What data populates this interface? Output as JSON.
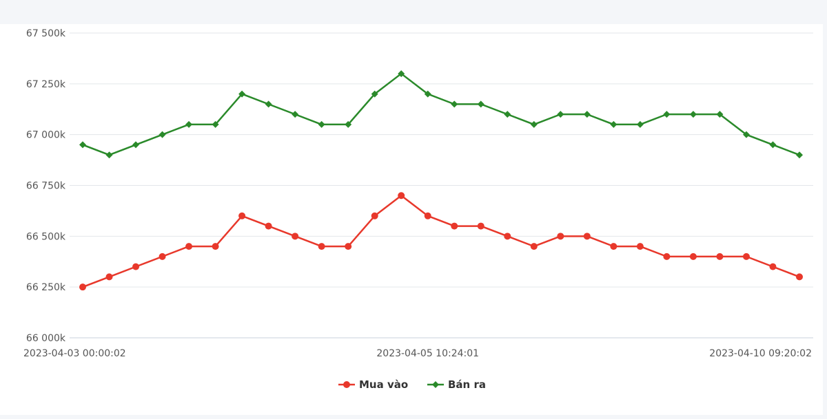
{
  "chart_data": {
    "type": "line",
    "x_tick_labels": [
      "2023-04-03 00:00:02",
      "2023-04-05 10:24:01",
      "2023-04-10 09:20:02"
    ],
    "x_tick_indices": [
      0,
      13,
      27
    ],
    "y_ticks": [
      66000,
      66250,
      66500,
      66750,
      67000,
      67250,
      67500
    ],
    "y_tick_labels": [
      "66 000k",
      "66 250k",
      "66 500k",
      "66 750k",
      "67 000k",
      "67 250k",
      "67 500k"
    ],
    "ylim": [
      66000,
      67500
    ],
    "grid": "horizontal",
    "legend_position": "bottom-center",
    "series": [
      {
        "name": "Mua vào",
        "color": "#e8382b",
        "marker": "circle",
        "values": [
          66250,
          66300,
          66350,
          66400,
          66450,
          66450,
          66600,
          66550,
          66500,
          66450,
          66450,
          66600,
          66700,
          66600,
          66550,
          66550,
          66500,
          66450,
          66500,
          66500,
          66450,
          66450,
          66400,
          66400,
          66400,
          66400,
          66350,
          66300
        ]
      },
      {
        "name": "Bán ra",
        "color": "#2a8a2a",
        "marker": "diamond",
        "values": [
          66950,
          66900,
          66950,
          67000,
          67050,
          67050,
          67200,
          67150,
          67100,
          67050,
          67050,
          67200,
          67300,
          67200,
          67150,
          67150,
          67100,
          67050,
          67100,
          67100,
          67050,
          67050,
          67100,
          67100,
          67100,
          67000,
          66950,
          66900
        ]
      }
    ]
  }
}
